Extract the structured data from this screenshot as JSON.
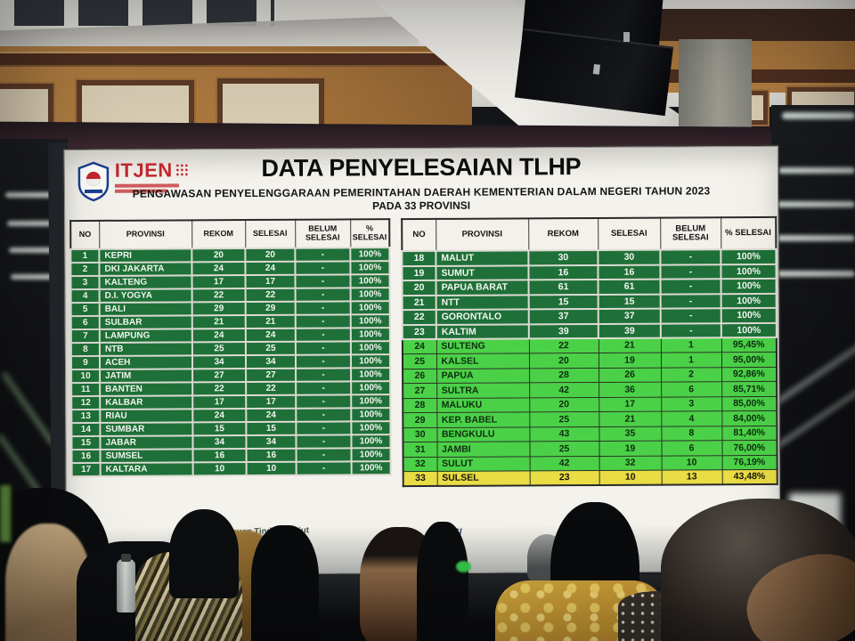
{
  "screen": {
    "logo": {
      "text": "ITJEN",
      "color": "#c1272d"
    },
    "title": "DATA PENYELESAIAN TLHP",
    "subtitle": "PENGAWASAN PENYELENGGARAAN PEMERINTAHAN DAERAH KEMENTERIAN DALAM NEGERI TAHUN 2023",
    "subtitle2": "PADA 33 PROVINSI",
    "footer": {
      "left_fragment": "Data Pemantauan Tindak Lanjut",
      "right_fragment": "WASI"
    },
    "table": {
      "columns": [
        "NO",
        "PROVINSI",
        "REKOM",
        "SELESAI",
        "BELUM SELESAI",
        "% SELESAI"
      ],
      "colors": {
        "complete": "#1e7038",
        "partial": "#4bd148",
        "low": "#e9dc44"
      },
      "left_rows": [
        {
          "no": "1",
          "provinsi": "KEPRI",
          "rekom": "20",
          "selesai": "20",
          "belum": "-",
          "pct": "100%",
          "tone": "complete"
        },
        {
          "no": "2",
          "provinsi": "DKI JAKARTA",
          "rekom": "24",
          "selesai": "24",
          "belum": "-",
          "pct": "100%",
          "tone": "complete"
        },
        {
          "no": "3",
          "provinsi": "KALTENG",
          "rekom": "17",
          "selesai": "17",
          "belum": "-",
          "pct": "100%",
          "tone": "complete"
        },
        {
          "no": "4",
          "provinsi": "D.I. YOGYA",
          "rekom": "22",
          "selesai": "22",
          "belum": "-",
          "pct": "100%",
          "tone": "complete"
        },
        {
          "no": "5",
          "provinsi": "BALI",
          "rekom": "29",
          "selesai": "29",
          "belum": "-",
          "pct": "100%",
          "tone": "complete"
        },
        {
          "no": "6",
          "provinsi": "SULBAR",
          "rekom": "21",
          "selesai": "21",
          "belum": "-",
          "pct": "100%",
          "tone": "complete"
        },
        {
          "no": "7",
          "provinsi": "LAMPUNG",
          "rekom": "24",
          "selesai": "24",
          "belum": "-",
          "pct": "100%",
          "tone": "complete"
        },
        {
          "no": "8",
          "provinsi": "NTB",
          "rekom": "25",
          "selesai": "25",
          "belum": "-",
          "pct": "100%",
          "tone": "complete"
        },
        {
          "no": "9",
          "provinsi": "ACEH",
          "rekom": "34",
          "selesai": "34",
          "belum": "-",
          "pct": "100%",
          "tone": "complete"
        },
        {
          "no": "10",
          "provinsi": "JATIM",
          "rekom": "27",
          "selesai": "27",
          "belum": "-",
          "pct": "100%",
          "tone": "complete"
        },
        {
          "no": "11",
          "provinsi": "BANTEN",
          "rekom": "22",
          "selesai": "22",
          "belum": "-",
          "pct": "100%",
          "tone": "complete"
        },
        {
          "no": "12",
          "provinsi": "KALBAR",
          "rekom": "17",
          "selesai": "17",
          "belum": "-",
          "pct": "100%",
          "tone": "complete"
        },
        {
          "no": "13",
          "provinsi": "RIAU",
          "rekom": "24",
          "selesai": "24",
          "belum": "-",
          "pct": "100%",
          "tone": "complete"
        },
        {
          "no": "14",
          "provinsi": "SUMBAR",
          "rekom": "15",
          "selesai": "15",
          "belum": "-",
          "pct": "100%",
          "tone": "complete"
        },
        {
          "no": "15",
          "provinsi": "JABAR",
          "rekom": "34",
          "selesai": "34",
          "belum": "-",
          "pct": "100%",
          "tone": "complete"
        },
        {
          "no": "16",
          "provinsi": "SUMSEL",
          "rekom": "16",
          "selesai": "16",
          "belum": "-",
          "pct": "100%",
          "tone": "complete"
        },
        {
          "no": "17",
          "provinsi": "KALTARA",
          "rekom": "10",
          "selesai": "10",
          "belum": "-",
          "pct": "100%",
          "tone": "complete"
        }
      ],
      "right_rows": [
        {
          "no": "18",
          "provinsi": "MALUT",
          "rekom": "30",
          "selesai": "30",
          "belum": "-",
          "pct": "100%",
          "tone": "complete"
        },
        {
          "no": "19",
          "provinsi": "SUMUT",
          "rekom": "16",
          "selesai": "16",
          "belum": "-",
          "pct": "100%",
          "tone": "complete"
        },
        {
          "no": "20",
          "provinsi": "PAPUA BARAT",
          "rekom": "61",
          "selesai": "61",
          "belum": "-",
          "pct": "100%",
          "tone": "complete"
        },
        {
          "no": "21",
          "provinsi": "NTT",
          "rekom": "15",
          "selesai": "15",
          "belum": "-",
          "pct": "100%",
          "tone": "complete"
        },
        {
          "no": "22",
          "provinsi": "GORONTALO",
          "rekom": "37",
          "selesai": "37",
          "belum": "-",
          "pct": "100%",
          "tone": "complete"
        },
        {
          "no": "23",
          "provinsi": "KALTIM",
          "rekom": "39",
          "selesai": "39",
          "belum": "-",
          "pct": "100%",
          "tone": "complete"
        },
        {
          "no": "24",
          "provinsi": "SULTENG",
          "rekom": "22",
          "selesai": "21",
          "belum": "1",
          "pct": "95,45%",
          "tone": "partial"
        },
        {
          "no": "25",
          "provinsi": "KALSEL",
          "rekom": "20",
          "selesai": "19",
          "belum": "1",
          "pct": "95,00%",
          "tone": "partial"
        },
        {
          "no": "26",
          "provinsi": "PAPUA",
          "rekom": "28",
          "selesai": "26",
          "belum": "2",
          "pct": "92,86%",
          "tone": "partial"
        },
        {
          "no": "27",
          "provinsi": "SULTRA",
          "rekom": "42",
          "selesai": "36",
          "belum": "6",
          "pct": "85,71%",
          "tone": "partial"
        },
        {
          "no": "28",
          "provinsi": "MALUKU",
          "rekom": "20",
          "selesai": "17",
          "belum": "3",
          "pct": "85,00%",
          "tone": "partial"
        },
        {
          "no": "29",
          "provinsi": "KEP. BABEL",
          "rekom": "25",
          "selesai": "21",
          "belum": "4",
          "pct": "84,00%",
          "tone": "partial"
        },
        {
          "no": "30",
          "provinsi": "BENGKULU",
          "rekom": "43",
          "selesai": "35",
          "belum": "8",
          "pct": "81,40%",
          "tone": "partial"
        },
        {
          "no": "31",
          "provinsi": "JAMBI",
          "rekom": "25",
          "selesai": "19",
          "belum": "6",
          "pct": "76,00%",
          "tone": "partial"
        },
        {
          "no": "32",
          "provinsi": "SULUT",
          "rekom": "42",
          "selesai": "32",
          "belum": "10",
          "pct": "76,19%",
          "tone": "partial"
        },
        {
          "no": "33",
          "provinsi": "SULSEL",
          "rekom": "23",
          "selesai": "10",
          "belum": "13",
          "pct": "43,48%",
          "tone": "low"
        }
      ]
    }
  }
}
